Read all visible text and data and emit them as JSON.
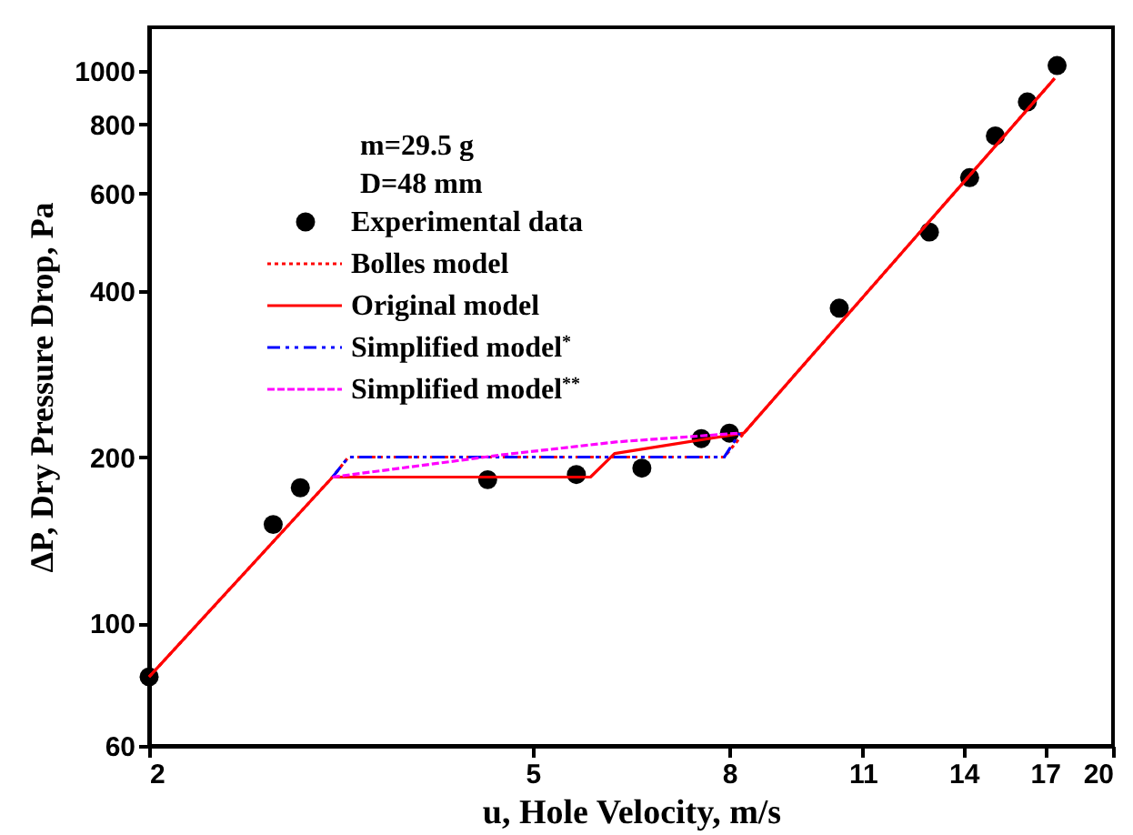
{
  "chart_data": {
    "type": "line",
    "xlabel": "u, Hole Velocity, m/s",
    "ylabel": "ΔP, Dry Pressure Drop, Pa",
    "annotations": [
      "m=29.5 g",
      "D=48 mm"
    ],
    "log": "xy",
    "xlim": [
      2,
      20
    ],
    "xticks": [
      2,
      5,
      8,
      11,
      14,
      17,
      20
    ],
    "ylim": [
      60,
      1200
    ],
    "yticks": [
      60,
      100,
      200,
      400,
      600,
      800,
      1000
    ],
    "grid": false,
    "legend": "top left",
    "series": [
      {
        "name": "Experimental data",
        "type": "scatter",
        "marker": "circle",
        "color": "#000000",
        "x": [
          2,
          2.69,
          2.87,
          4.49,
          5.55,
          6.49,
          7.48,
          8.0,
          10.4,
          12.9,
          14.2,
          15.1,
          16.3,
          17.5
        ],
        "values": [
          80,
          151,
          176,
          182,
          186,
          191,
          216,
          221,
          372,
          511,
          641,
          763,
          879,
          1023
        ]
      },
      {
        "name": "Bolles model",
        "type": "line",
        "line_style": "dotted",
        "color": "#ff0000",
        "x": [
          2,
          3.1,
          3.22,
          7.9,
          8.28,
          17.4
        ],
        "values": [
          80,
          184,
          200,
          200,
          221,
          970
        ]
      },
      {
        "name": "Original model",
        "type": "line",
        "line_style": "solid",
        "color": "#ff0000",
        "x": [
          2,
          3.1,
          5.74,
          6.08,
          8.28,
          17.4
        ],
        "values": [
          80,
          184,
          184,
          203,
          221,
          970
        ]
      },
      {
        "name": "Simplified model$^{*}$",
        "type": "line",
        "line_style": "dashdot",
        "color": "#0000ff",
        "x": [
          3.1,
          3.22,
          7.9,
          8.2
        ],
        "values": [
          184,
          200,
          200,
          221
        ]
      },
      {
        "name": "Simplified model$^{**}$",
        "type": "line",
        "line_style": "dashed",
        "color": "#ff00ff",
        "x": [
          3.1,
          4.66,
          6.1,
          8.2
        ],
        "values": [
          184,
          202,
          213,
          221
        ]
      }
    ]
  }
}
